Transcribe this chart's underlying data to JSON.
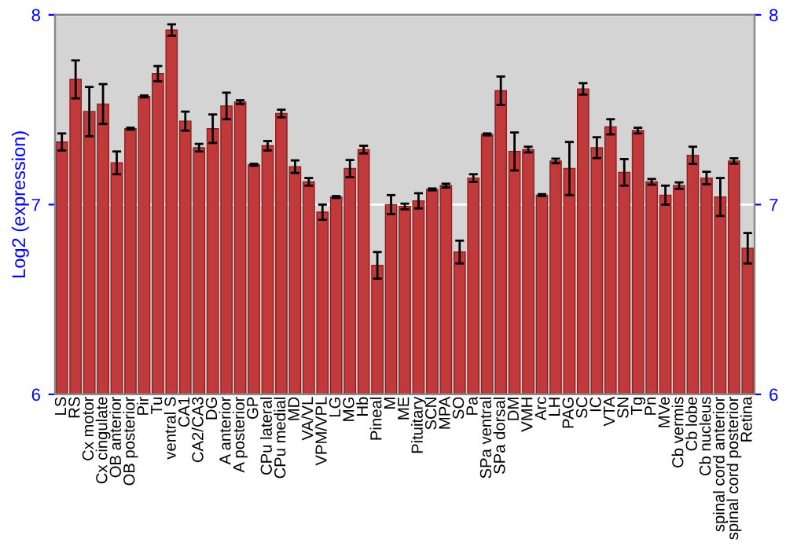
{
  "chart_data": {
    "type": "bar",
    "ylabel": "Log2 (expression)",
    "categories": [
      "LS",
      "RS",
      "Cx motor",
      "Cx cingulate",
      "OB anterior",
      "OB posterior",
      "Pir",
      "Tu",
      "ventral S",
      "CA1",
      "CA2/CA3",
      "DG",
      "A anterior",
      "A posterior",
      "GP",
      "CPu lateral",
      "CPu medial",
      "MD",
      "VA/VL",
      "VPM/VPL",
      "LG",
      "MG",
      "Hb",
      "Pineal",
      "M",
      "ME",
      "Pituitary",
      "SCN",
      "MPA",
      "SO",
      "Pa",
      "SPa ventral",
      "SPa dorsal",
      "DM",
      "VMH",
      "Arc",
      "LH",
      "PAG",
      "SC",
      "IC",
      "VTA",
      "SN",
      "Tg",
      "Pn",
      "MVe",
      "Cb vermis",
      "Cb lobe",
      "Cb nucleus",
      "spinal cord anterior",
      "spinal cord posterior",
      "Retina"
    ],
    "values": [
      7.33,
      7.66,
      7.49,
      7.53,
      7.22,
      7.4,
      7.57,
      7.69,
      7.92,
      7.44,
      7.3,
      7.4,
      7.52,
      7.54,
      7.21,
      7.31,
      7.48,
      7.2,
      7.12,
      6.96,
      7.04,
      7.19,
      7.29,
      6.68,
      7.0,
      6.99,
      7.02,
      7.08,
      7.1,
      6.75,
      7.14,
      7.37,
      7.6,
      7.28,
      7.29,
      7.05,
      7.23,
      7.19,
      7.61,
      7.3,
      7.41,
      7.17,
      7.39,
      7.12,
      7.05,
      7.1,
      7.26,
      7.14,
      7.04,
      7.23,
      6.77
    ],
    "errors": [
      0.045,
      0.1,
      0.13,
      0.105,
      0.06,
      0.005,
      0.005,
      0.04,
      0.03,
      0.05,
      0.02,
      0.075,
      0.07,
      0.01,
      0.005,
      0.025,
      0.02,
      0.033,
      0.02,
      0.04,
      0.005,
      0.045,
      0.02,
      0.07,
      0.05,
      0.015,
      0.04,
      0.005,
      0.01,
      0.06,
      0.02,
      0.005,
      0.075,
      0.1,
      0.015,
      0.005,
      0.012,
      0.14,
      0.03,
      0.055,
      0.04,
      0.07,
      0.015,
      0.015,
      0.05,
      0.017,
      0.045,
      0.033,
      0.1,
      0.014,
      0.08
    ],
    "color": "#c0393b",
    "ylim": [
      6,
      8
    ],
    "yticks": [
      6,
      7,
      8
    ],
    "y2lim": [
      6,
      8
    ],
    "y2ticks": [
      6,
      7,
      8
    ],
    "grid": "y"
  }
}
